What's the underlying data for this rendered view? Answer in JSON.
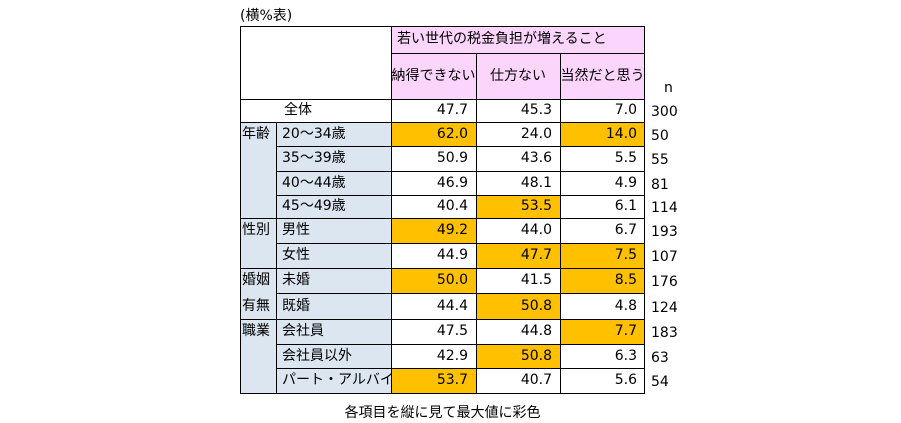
{
  "unit_note": "(横%表)",
  "footnote": "各項目を縦に見て最大値に彩色",
  "group_header": "若い世代の税金負担が増えること",
  "column_headers": [
    "納得できない",
    "仕方ない",
    "当然だと思う"
  ],
  "n_header": "n",
  "highlight_color": "#ffc000",
  "header_color": "#fcd5fc",
  "label_color": "#dce6f1",
  "chart_data": {
    "type": "table",
    "columns": [
      "納得できない",
      "仕方ない",
      "当然だと思う"
    ],
    "rows": [
      {
        "category": "",
        "label": "全体",
        "values": [
          "47.7",
          "45.3",
          "7.0"
        ],
        "n": "300",
        "highlight": [
          false,
          false,
          false
        ]
      },
      {
        "category": "年齢",
        "label": "20～34歳",
        "values": [
          "62.0",
          "24.0",
          "14.0"
        ],
        "n": "50",
        "highlight": [
          true,
          false,
          true
        ]
      },
      {
        "category": "",
        "label": "35～39歳",
        "values": [
          "50.9",
          "43.6",
          "5.5"
        ],
        "n": "55",
        "highlight": [
          false,
          false,
          false
        ]
      },
      {
        "category": "",
        "label": "40～44歳",
        "values": [
          "46.9",
          "48.1",
          "4.9"
        ],
        "n": "81",
        "highlight": [
          false,
          false,
          false
        ]
      },
      {
        "category": "",
        "label": "45～49歳",
        "values": [
          "40.4",
          "53.5",
          "6.1"
        ],
        "n": "114",
        "highlight": [
          false,
          true,
          false
        ]
      },
      {
        "category": "性別",
        "label": "男性",
        "values": [
          "49.2",
          "44.0",
          "6.7"
        ],
        "n": "193",
        "highlight": [
          true,
          false,
          false
        ]
      },
      {
        "category": "",
        "label": "女性",
        "values": [
          "44.9",
          "47.7",
          "7.5"
        ],
        "n": "107",
        "highlight": [
          false,
          true,
          true
        ]
      },
      {
        "category": "婚姻",
        "label": "未婚",
        "values": [
          "50.0",
          "41.5",
          "8.5"
        ],
        "n": "176",
        "highlight": [
          true,
          false,
          true
        ]
      },
      {
        "category": "有無",
        "label": "既婚",
        "values": [
          "44.4",
          "50.8",
          "4.8"
        ],
        "n": "124",
        "highlight": [
          false,
          true,
          false
        ]
      },
      {
        "category": "職業",
        "label": "会社員",
        "values": [
          "47.5",
          "44.8",
          "7.7"
        ],
        "n": "183",
        "highlight": [
          false,
          false,
          true
        ]
      },
      {
        "category": "",
        "label": "会社員以外",
        "values": [
          "42.9",
          "50.8",
          "6.3"
        ],
        "n": "63",
        "highlight": [
          false,
          true,
          false
        ]
      },
      {
        "category": "",
        "label": "パート・アルバイト",
        "values": [
          "53.7",
          "40.7",
          "5.6"
        ],
        "n": "54",
        "highlight": [
          true,
          false,
          false
        ]
      }
    ]
  }
}
